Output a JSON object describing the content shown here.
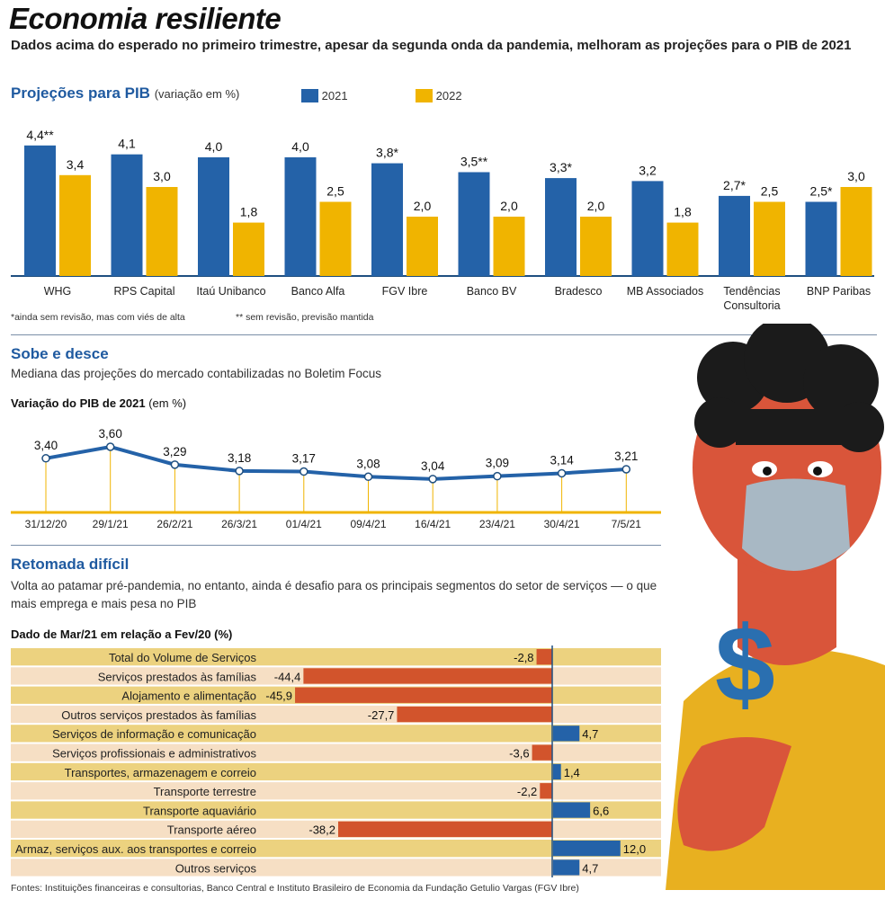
{
  "title": "Economia resiliente",
  "subtitle": "Dados acima do esperado no primeiro trimestre, apesar da segunda onda da pandemia, melhoram as projeções para o PIB de 2021",
  "colors": {
    "blue": "#2462a8",
    "yellow": "#f0b400",
    "red": "#d2542c",
    "band_a": "#ecd27f",
    "band_b": "#f6dfc4",
    "heading": "#1f5aa0"
  },
  "chart_data": [
    {
      "type": "bar",
      "title": "Projeções para PIB",
      "title_note": "(variação em %)",
      "categories": [
        "WHG",
        "RPS Capital",
        "Itaú Unibanco",
        "Banco Alfa",
        "FGV Ibre",
        "Banco BV",
        "Bradesco",
        "MB Associados",
        "Tendências Consultoria",
        "BNP Paribas"
      ],
      "series": [
        {
          "name": "2021",
          "values": [
            4.4,
            4.1,
            4.0,
            4.0,
            3.8,
            3.5,
            3.3,
            3.2,
            2.7,
            2.5
          ],
          "labels": [
            "4,4**",
            "4,1",
            "4,0",
            "4,0",
            "3,8*",
            "3,5**",
            "3,3*",
            "3,2",
            "2,7*",
            "2,5*"
          ]
        },
        {
          "name": "2022",
          "values": [
            3.4,
            3.0,
            1.8,
            2.5,
            2.0,
            2.0,
            2.0,
            1.8,
            2.5,
            3.0
          ],
          "labels": [
            "3,4",
            "3,0",
            "1,8",
            "2,5",
            "2,0",
            "2,0",
            "2,0",
            "1,8",
            "2,5",
            "3,0"
          ]
        }
      ],
      "footnotes": [
        "*ainda sem revisão, mas com viés de alta",
        "** sem revisão, previsão mantida"
      ],
      "legend": "top",
      "ylim": [
        0,
        5
      ]
    },
    {
      "type": "line",
      "section": "Sobe e desce",
      "section_subtitle": "Mediana das projeções do mercado contabilizadas no Boletim Focus",
      "title": "Variação do PIB de 2021",
      "title_note": "(em %)",
      "x": [
        "31/12/20",
        "29/1/21",
        "26/2/21",
        "26/3/21",
        "01/4/21",
        "09/4/21",
        "16/4/21",
        "23/4/21",
        "30/4/21",
        "7/5/21"
      ],
      "y": [
        3.4,
        3.6,
        3.29,
        3.18,
        3.17,
        3.08,
        3.04,
        3.09,
        3.14,
        3.21
      ],
      "labels": [
        "3,40",
        "3,60",
        "3,29",
        "3,18",
        "3,17",
        "3,08",
        "3,04",
        "3,09",
        "3,14",
        "3,21"
      ]
    },
    {
      "type": "bar",
      "orientation": "horizontal",
      "section": "Retomada difícil",
      "section_subtitle": "Volta ao patamar pré-pandemia, no entanto, ainda é desafio para os principais segmentos do setor de serviços — o que mais emprega e mais pesa no PIB",
      "title": "Dado de Mar/21 em relação a Fev/20 (%)",
      "categories": [
        "Total do Volume de Serviços",
        "Serviços prestados às famílias",
        "Alojamento e alimentação",
        "Outros serviços prestados às famílias",
        "Serviços de informação e comunicação",
        "Serviços profissionais e administrativos",
        "Transportes, armazenagem e correio",
        "Transporte terrestre",
        "Transporte aquaviário",
        "Transporte aéreo",
        "Armaz, serviços aux. aos transportes e correio",
        "Outros serviços"
      ],
      "values": [
        -2.8,
        -44.4,
        -45.9,
        -27.7,
        4.7,
        -3.6,
        1.4,
        -2.2,
        6.6,
        -38.2,
        12.0,
        4.7
      ],
      "labels": [
        "-2,8",
        "-44,4",
        "-45,9",
        "-27,7",
        "4,7",
        "-3,6",
        "1,4",
        "-2,2",
        "6,6",
        "-38,2",
        "12,0",
        "4,7"
      ]
    }
  ],
  "sources": "Fontes:  Instituições financeiras e consultorias, Banco Central e Instituto Brasileiro de Economia da Fundação Getulio Vargas (FGV Ibre)",
  "illustration": {
    "icon": "masked-person-holding-dollar-icon"
  }
}
